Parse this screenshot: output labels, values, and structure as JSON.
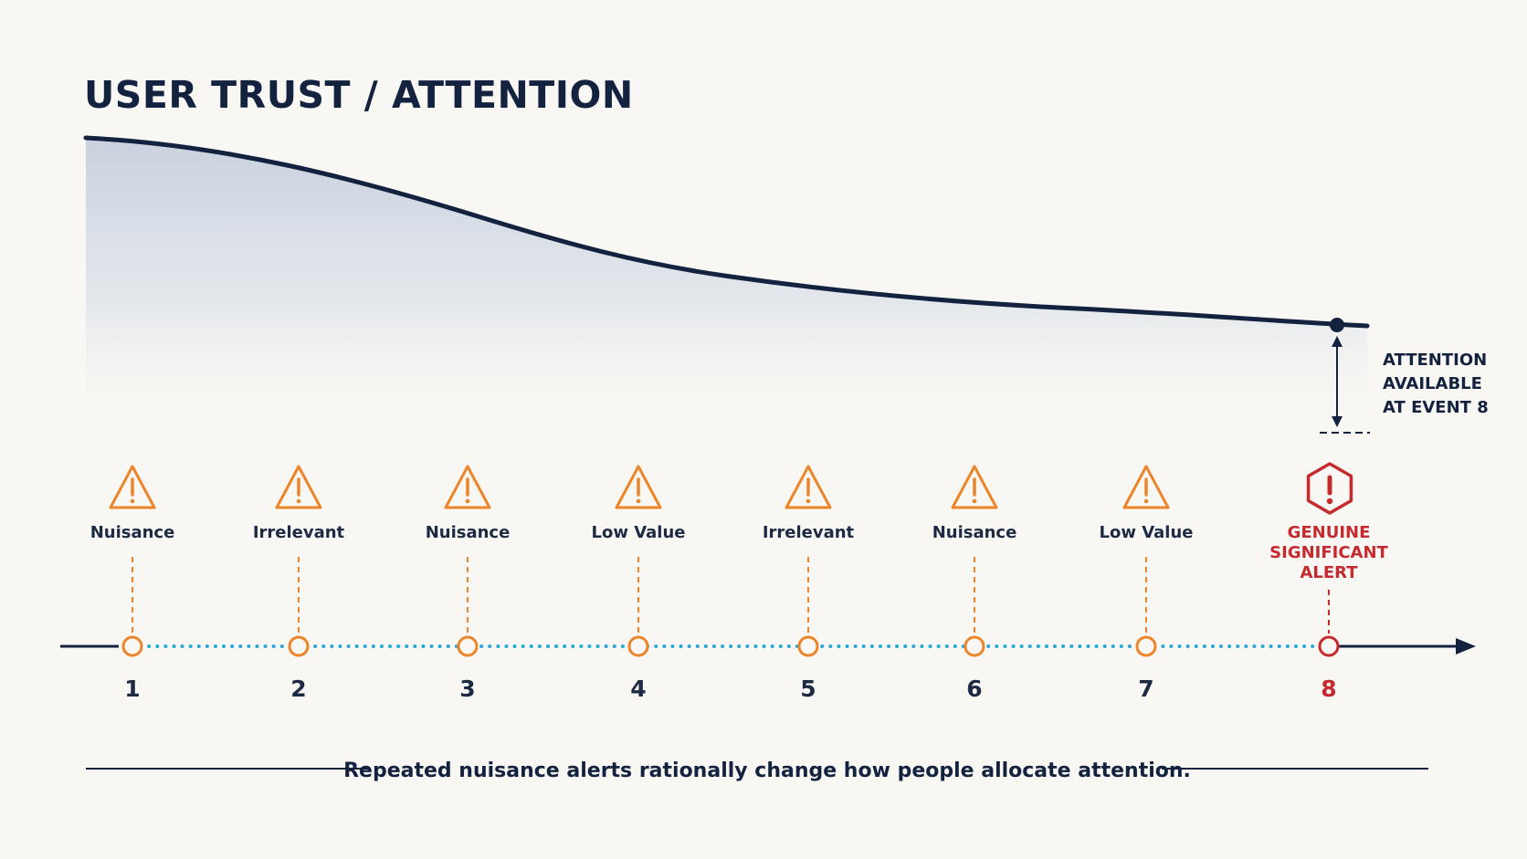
{
  "title": "USER TRUST / ATTENTION",
  "annotation": {
    "lines": [
      "ATTENTION",
      "AVAILABLE",
      "AT EVENT 8"
    ]
  },
  "events": [
    {
      "number": "1",
      "labels": [
        "Nuisance"
      ],
      "type": "nuisance",
      "icon": "warning-triangle-icon"
    },
    {
      "number": "2",
      "labels": [
        "Irrelevant"
      ],
      "type": "nuisance",
      "icon": "warning-triangle-icon"
    },
    {
      "number": "3",
      "labels": [
        "Nuisance"
      ],
      "type": "nuisance",
      "icon": "warning-triangle-icon"
    },
    {
      "number": "4",
      "labels": [
        "Low Value"
      ],
      "type": "nuisance",
      "icon": "warning-triangle-icon"
    },
    {
      "number": "5",
      "labels": [
        "Irrelevant"
      ],
      "type": "nuisance",
      "icon": "warning-triangle-icon"
    },
    {
      "number": "6",
      "labels": [
        "Nuisance"
      ],
      "type": "nuisance",
      "icon": "warning-triangle-icon"
    },
    {
      "number": "7",
      "labels": [
        "Low Value"
      ],
      "type": "nuisance",
      "icon": "warning-triangle-icon"
    },
    {
      "number": "8",
      "labels": [
        "GENUINE",
        "SIGNIFICANT",
        "ALERT"
      ],
      "type": "alert",
      "icon": "alert-hexagon-icon"
    }
  ],
  "caption": "Repeated nuisance alerts rationally change how people allocate attention.",
  "colors": {
    "background": "#f9f7f3",
    "ink": "#13223f",
    "warning": "#ec8529",
    "alert": "#c42a2e",
    "timeline_dots": "#2aa8d9",
    "curve_fill": "#c9d2e0"
  }
}
